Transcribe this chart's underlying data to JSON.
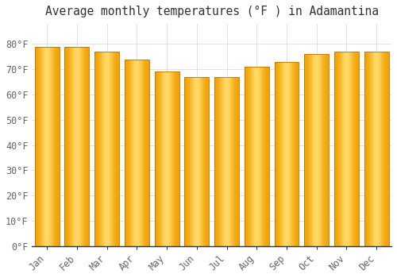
{
  "title": "Average monthly temperatures (°F ) in Adamantina",
  "months": [
    "Jan",
    "Feb",
    "Mar",
    "Apr",
    "May",
    "Jun",
    "Jul",
    "Aug",
    "Sep",
    "Oct",
    "Nov",
    "Dec"
  ],
  "values": [
    79,
    79,
    77,
    74,
    69,
    67,
    67,
    71,
    73,
    76,
    77,
    77
  ],
  "bar_color_center": "#FFD966",
  "bar_color_edge": "#F0A000",
  "bar_edge_color": "#C87000",
  "ylim": [
    0,
    88
  ],
  "yticks": [
    0,
    10,
    20,
    30,
    40,
    50,
    60,
    70,
    80
  ],
  "background_color": "#ffffff",
  "grid_color": "#dddddd",
  "title_fontsize": 10.5,
  "tick_fontsize": 8.5
}
